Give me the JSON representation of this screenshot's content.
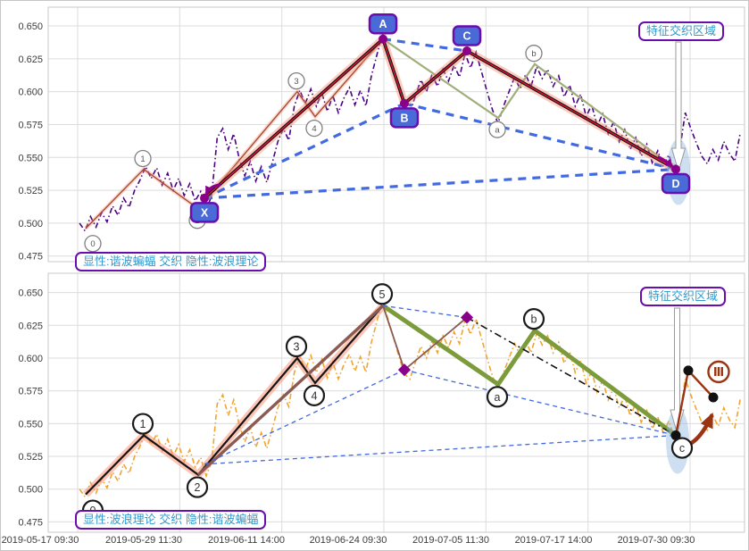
{
  "colors": {
    "grid": "#dcdcdc",
    "spine": "#c8c8c8",
    "tick_text": "#3c3c3c",
    "price_top": "#4B0082",
    "price_bottom": "#F0A430",
    "wave_top": "#A34A34",
    "wave_bottom": "#141414",
    "abc_olive_top": "#A0AF7A",
    "abc_olive_bottom": "#7C9B3B",
    "harmonic_black": "#141414",
    "harmonic_core": "#DC143C",
    "harmonic_brown": "#8B5A52",
    "glow": "#FA8C6E",
    "dashed_blue": "#4169E1",
    "vertex_purple": "#8B008B",
    "box_fill": "#4A6AD8",
    "box_border": "#6A0DAD",
    "box_text": "#ffffff",
    "label_text": "#3399CC",
    "label_border": "#6A0DAD",
    "circle_gray": "#808080",
    "circle_black": "#1a1a1a",
    "projection_red": "#9A3412",
    "ellipse_fill": "#91B9E1",
    "white_arrow_fill": "#ffffff",
    "white_arrow_stroke": "#9a9a9a"
  },
  "chart_data": {
    "type": "line",
    "x_axis": {
      "tick_labels": [
        "2019-05-17 09:30",
        "2019-05-29 11:30",
        "2019-06-11 14:00",
        "2019-06-24 09:30",
        "2019-07-05 11:30",
        "2019-07-17 14:00",
        "2019-07-30 09:30"
      ]
    },
    "y_axis": {
      "ticks": [
        0.65,
        0.625,
        0.6,
        0.575,
        0.55,
        0.525,
        0.5,
        0.475
      ]
    },
    "price_series": {
      "t0": 0.045,
      "dt": 0.0079083,
      "values": [
        0.5,
        0.494,
        0.505,
        0.497,
        0.508,
        0.501,
        0.513,
        0.506,
        0.519,
        0.512,
        0.525,
        0.533,
        0.543,
        0.534,
        0.542,
        0.529,
        0.538,
        0.525,
        0.534,
        0.521,
        0.53,
        0.517,
        0.524,
        0.51,
        0.521,
        0.565,
        0.572,
        0.556,
        0.568,
        0.549,
        0.536,
        0.547,
        0.532,
        0.543,
        0.531,
        0.546,
        0.562,
        0.572,
        0.563,
        0.589,
        0.601,
        0.591,
        0.602,
        0.589,
        0.599,
        0.585,
        0.597,
        0.584,
        0.595,
        0.603,
        0.59,
        0.601,
        0.589,
        0.612,
        0.628,
        0.644,
        0.63,
        0.616,
        0.601,
        0.588,
        0.584,
        0.597,
        0.609,
        0.6,
        0.613,
        0.604,
        0.617,
        0.608,
        0.62,
        0.611,
        0.629,
        0.618,
        0.63,
        0.615,
        0.6,
        0.586,
        0.576,
        0.589,
        0.6,
        0.611,
        0.602,
        0.613,
        0.604,
        0.619,
        0.61,
        0.617,
        0.604,
        0.612,
        0.596,
        0.605,
        0.589,
        0.598,
        0.581,
        0.59,
        0.574,
        0.583,
        0.568,
        0.577,
        0.562,
        0.571,
        0.556,
        0.565,
        0.551,
        0.56,
        0.546,
        0.555,
        0.543,
        0.552,
        0.54,
        0.556,
        0.584,
        0.572,
        0.561,
        0.551,
        0.545,
        0.556,
        0.548,
        0.562,
        0.553,
        0.547,
        0.569
      ]
    },
    "wave_points": [
      {
        "label": "0",
        "t": 0.0538,
        "p": 0.496,
        "dir": -1
      },
      {
        "label": "1",
        "t": 0.1372,
        "p": 0.541,
        "dir": 1
      },
      {
        "label": "2",
        "t": 0.2154,
        "p": 0.511,
        "dir": -1
      },
      {
        "label": "3",
        "t": 0.3577,
        "p": 0.6,
        "dir": 1
      },
      {
        "label": "4",
        "t": 0.3833,
        "p": 0.581,
        "dir": -1
      },
      {
        "label": "5",
        "t": 0.4808,
        "p": 0.64,
        "dir": 1
      }
    ],
    "abc_points": [
      {
        "label": "a",
        "t": 0.6462,
        "p": 0.58,
        "dir": -1
      },
      {
        "label": "b",
        "t": 0.6987,
        "p": 0.621,
        "dir": 1
      },
      {
        "label": "c",
        "t": 0.9013,
        "p": 0.541,
        "dir": -1
      }
    ],
    "harmonic_points": [
      {
        "label": "X",
        "t": 0.2244,
        "p": 0.519,
        "dir": -1
      },
      {
        "label": "A",
        "t": 0.4808,
        "p": 0.64,
        "dir": 1
      },
      {
        "label": "B",
        "t": 0.5115,
        "p": 0.591,
        "dir": -1
      },
      {
        "label": "C",
        "t": 0.6013,
        "p": 0.631,
        "dir": 1
      },
      {
        "label": "D",
        "t": 0.9013,
        "p": 0.541,
        "dir": -1
      }
    ],
    "harmonic_solid_edges": [
      [
        "X",
        "A"
      ],
      [
        "A",
        "B"
      ],
      [
        "B",
        "C"
      ],
      [
        "C",
        "D"
      ]
    ],
    "harmonic_dashed_edges": [
      [
        "X",
        "B"
      ],
      [
        "A",
        "C"
      ],
      [
        "B",
        "D"
      ],
      [
        "X",
        "D"
      ]
    ],
    "projection": {
      "points": [
        [
          0.9013,
          0.541
        ],
        [
          0.9192,
          0.5905
        ],
        [
          0.9551,
          0.57
        ]
      ],
      "label": "Ⅲ",
      "label_t": 0.9628,
      "label_p": 0.5895,
      "arrow": {
        "from": [
          0.898,
          0.5325
        ],
        "ctrl": [
          0.9295,
          0.529
        ],
        "to": [
          0.9526,
          0.556
        ]
      }
    },
    "panels": [
      {
        "id": "top",
        "explicit": "harmonic",
        "mode_label": "显性:谐波蝙蝠 交织 隐性:波浪理论",
        "feature_label": "特征交织区域"
      },
      {
        "id": "bottom",
        "explicit": "wave",
        "mode_label": "显性:波浪理论 交织 隐性:谐波蝙蝠",
        "feature_label": "特征交织区域"
      }
    ]
  }
}
